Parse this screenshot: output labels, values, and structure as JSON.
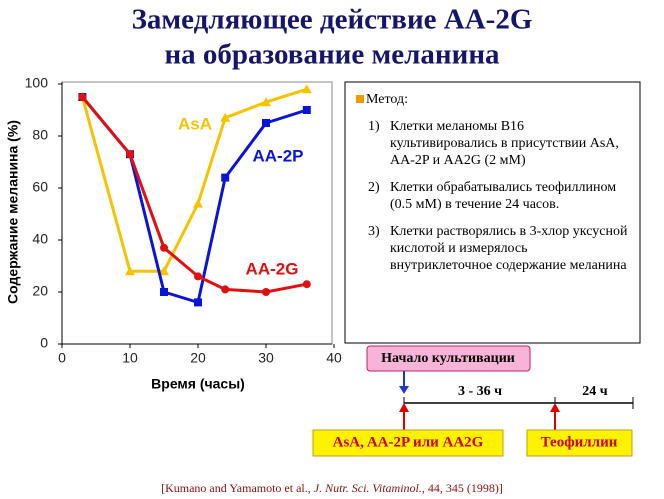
{
  "title": [
    "Замедляющее действие AA-2G",
    "на образование меланина"
  ],
  "chart_data": {
    "type": "line",
    "x": [
      3,
      10,
      15,
      20,
      24,
      30,
      36
    ],
    "xlim": [
      0,
      40
    ],
    "xticks": [
      0,
      10,
      20,
      30,
      40
    ],
    "ylim": [
      0,
      100
    ],
    "yticks": [
      0,
      20,
      40,
      60,
      80,
      100
    ],
    "xlabel": "Время (часы)",
    "ylabel": "Содержание меланина (%)",
    "series": [
      {
        "name": "AsA",
        "color": "#f5c400",
        "marker": "triangle",
        "values": [
          95,
          28,
          28,
          54,
          87,
          93,
          98
        ]
      },
      {
        "name": "AA-2P",
        "color": "#0a14d8",
        "marker": "square",
        "values": [
          95,
          73,
          20,
          16,
          64,
          85,
          90
        ]
      },
      {
        "name": "AA-2G",
        "color": "#e01010",
        "marker": "circle",
        "values": [
          95,
          73,
          37,
          26,
          21,
          20,
          23
        ]
      }
    ]
  },
  "method": {
    "heading": "Метод:",
    "items": [
      {
        "num": "1)",
        "text": "Клетки меланомы B16 культивировались в присутствии AsA, AA-2P и AA2G (2 мМ)"
      },
      {
        "num": "2)",
        "text": "Клетки обрабатывались теофиллином (0.5 мМ) в течение 24 часов."
      },
      {
        "num": "3)",
        "text": "Клетки растворялись в 3-хлор уксусной кислотой и измерялось внутриклеточное содержание меланина"
      }
    ]
  },
  "timeline": {
    "start": "Начало культивации",
    "period1": "3 - 36 ч",
    "period2": "24 ч",
    "agent1": "AsA, AA-2P или AA2G",
    "agent2": "Теофиллин"
  },
  "citation": {
    "authors": "[Kumano and Yamamoto et al.,",
    "journal": "J. Nutr. Sci. Vitaminol.",
    "details": ", 44, 345 (1998)]"
  }
}
